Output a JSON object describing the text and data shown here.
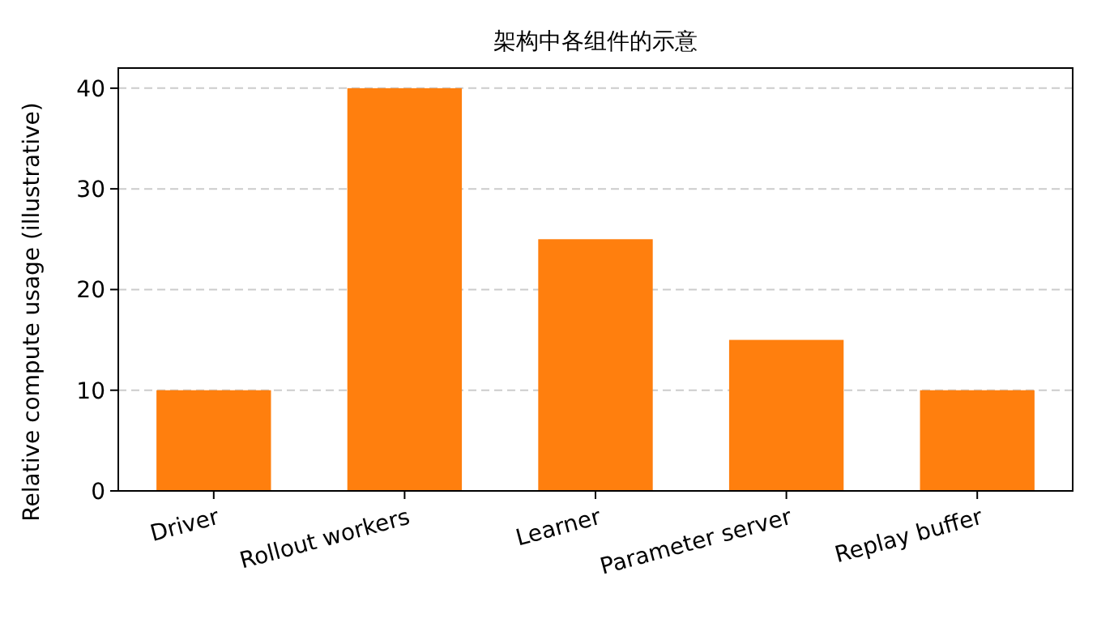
{
  "chart_data": {
    "type": "bar",
    "title": "架构中各组件的示意",
    "ylabel": "Relative compute usage (illustrative)",
    "categories": [
      "Driver",
      "Rollout workers",
      "Learner",
      "Parameter server",
      "Replay buffer"
    ],
    "values": [
      10,
      40,
      25,
      15,
      10
    ],
    "color": "#ff7f0e",
    "ylim": [
      0,
      42
    ],
    "yticks": [
      0,
      10,
      20,
      30,
      40
    ],
    "grid": "y"
  }
}
